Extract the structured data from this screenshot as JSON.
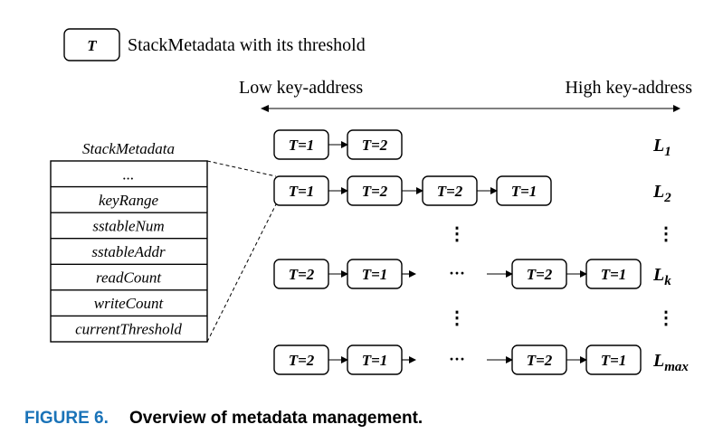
{
  "legend": {
    "symbol": "T",
    "text": "StackMetadata with its threshold"
  },
  "axis": {
    "left_label": "Low key-address",
    "right_label": "High key-address"
  },
  "stack_metadata": {
    "title": "StackMetadata",
    "fields": [
      "...",
      "keyRange",
      "sstableNum",
      "sstableAddr",
      "readCount",
      "writeCount",
      "currentThreshold"
    ]
  },
  "levels": [
    {
      "name": "L",
      "sub": "1",
      "nodes": [
        "T=1",
        "T=2"
      ]
    },
    {
      "name": "L",
      "sub": "2",
      "nodes": [
        "T=1",
        "T=2",
        "T=2",
        "T=1"
      ]
    },
    {
      "name": "L",
      "sub": "k",
      "left_nodes": [
        "T=2",
        "T=1"
      ],
      "ellipsis": "···",
      "right_nodes": [
        "T=2",
        "T=1"
      ]
    },
    {
      "name": "L",
      "sub": "max",
      "left_nodes": [
        "T=2",
        "T=1"
      ],
      "ellipsis": "···",
      "right_nodes": [
        "T=2",
        "T=1"
      ]
    }
  ],
  "caption": {
    "number": "FIGURE 6.",
    "text": "Overview of metadata management."
  }
}
